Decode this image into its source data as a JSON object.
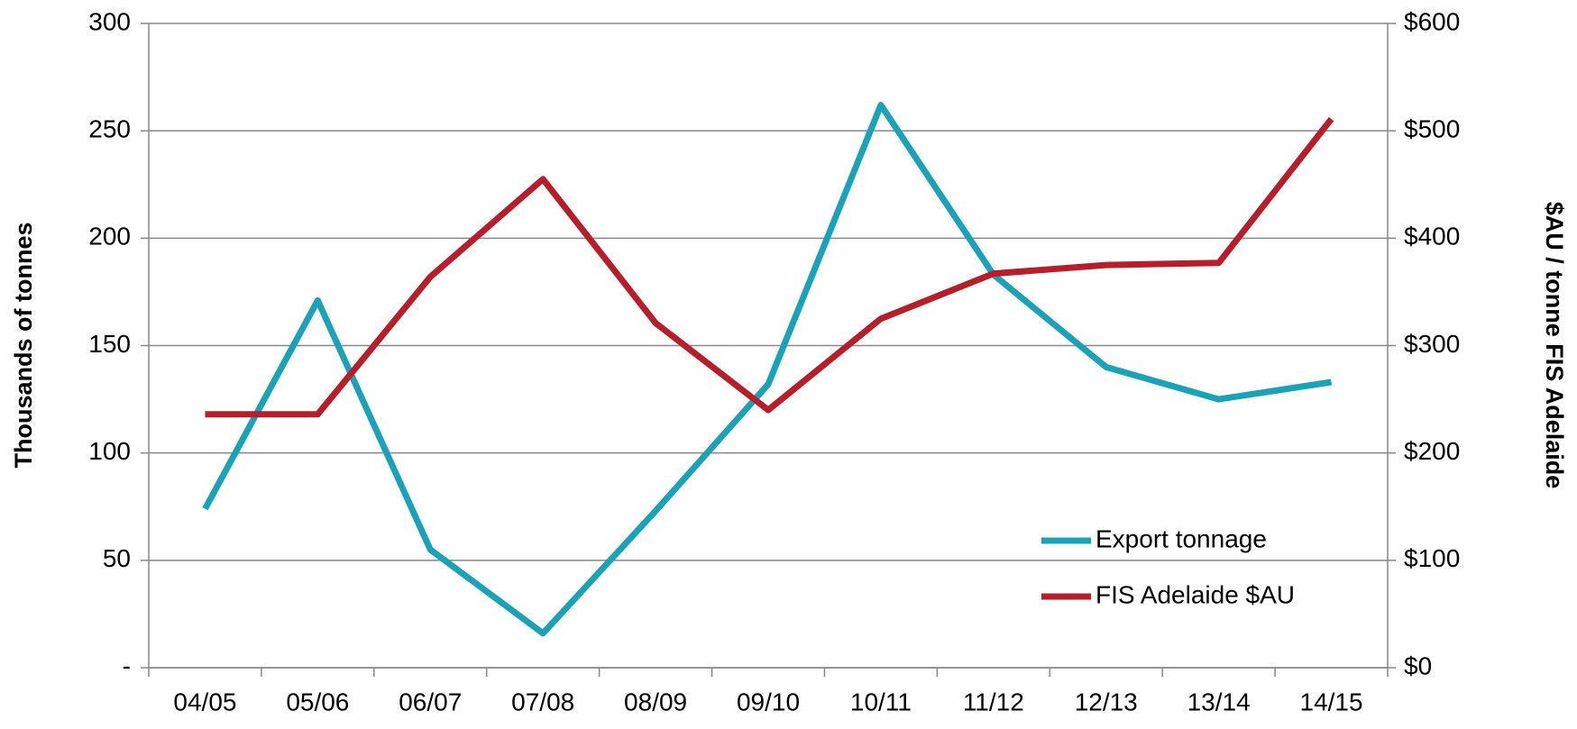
{
  "chart_data": {
    "type": "line",
    "ylabel": "Thousands of tonnes",
    "y2label": "$AU / tonne  FIS Adelaide",
    "categories": [
      "04/05",
      "05/06",
      "06/07",
      "07/08",
      "08/09",
      "09/10",
      "10/11",
      "11/12",
      "12/13",
      "13/14",
      "14/15"
    ],
    "series": [
      {
        "name": "Export tonnage",
        "color": "#1aa3b8",
        "values": [
          74,
          171,
          55,
          16,
          73,
          132,
          262,
          183,
          140,
          125,
          133
        ]
      },
      {
        "name": "FIS Adelaide $AU",
        "color": "#b81e2a",
        "axis": "y2",
        "values": [
          236,
          236,
          364,
          455,
          321,
          240,
          325,
          367,
          375,
          377,
          511
        ]
      }
    ],
    "ylim": [
      0,
      300
    ],
    "yticks": [
      {
        "value": 0,
        "label": "-"
      },
      50,
      100,
      150,
      200,
      250,
      300
    ],
    "y2lim": [
      0,
      600
    ],
    "y2ticks": [
      {
        "value": 0,
        "label": "$0"
      },
      {
        "value": 100,
        "label": "$100"
      },
      {
        "value": 200,
        "label": "$200"
      },
      {
        "value": 300,
        "label": "$300"
      },
      {
        "value": 400,
        "label": "$400"
      },
      {
        "value": 500,
        "label": "$500"
      },
      {
        "value": 600,
        "label": "$600"
      }
    ],
    "grid": true,
    "legend": "lower right"
  }
}
